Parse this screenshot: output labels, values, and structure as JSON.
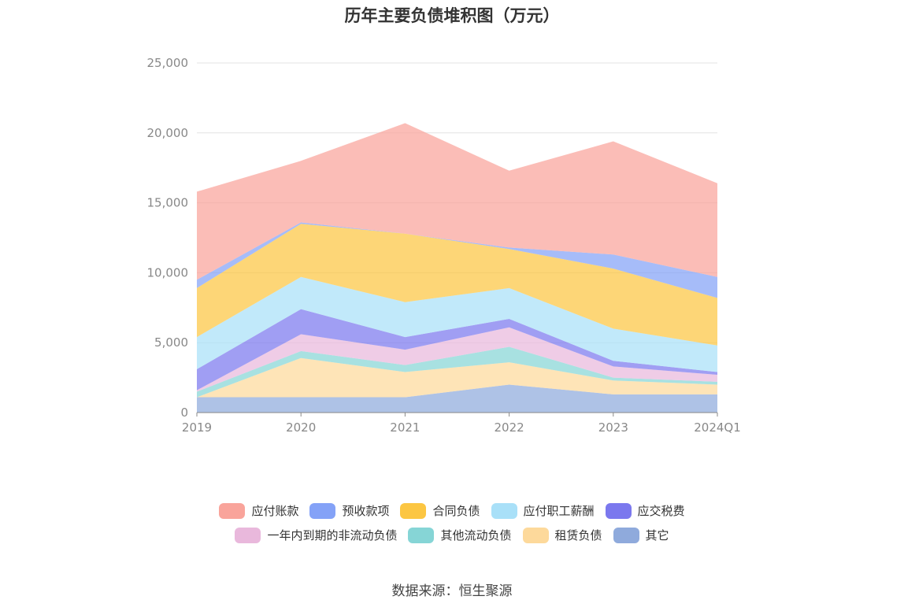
{
  "chart_data": {
    "type": "area",
    "stacked": true,
    "title": "历年主要负债堆积图（万元）",
    "categories": [
      "2019",
      "2020",
      "2021",
      "2022",
      "2023",
      "2024Q1"
    ],
    "ylim": [
      0,
      25000
    ],
    "yticks": [
      0,
      5000,
      10000,
      15000,
      20000,
      25000
    ],
    "ytick_labels": [
      "0",
      "5,000",
      "10,000",
      "15,000",
      "20,000",
      "25,000"
    ],
    "grid": true,
    "legend_position": "bottom",
    "series": [
      {
        "name": "其它",
        "color": "#8faadc",
        "values": [
          1100,
          1100,
          1100,
          2000,
          1300,
          1300
        ]
      },
      {
        "name": "租赁负债",
        "color": "#fdd99b",
        "values": [
          0,
          2800,
          1800,
          1600,
          1000,
          700
        ]
      },
      {
        "name": "其他流动负债",
        "color": "#86d5d6",
        "values": [
          400,
          500,
          500,
          1100,
          200,
          200
        ]
      },
      {
        "name": "一年内到期的非流动负债",
        "color": "#e9b8dc",
        "values": [
          100,
          1200,
          1100,
          1400,
          800,
          500
        ]
      },
      {
        "name": "应交税费",
        "color": "#7b78ee",
        "values": [
          1500,
          1800,
          900,
          600,
          400,
          200
        ]
      },
      {
        "name": "应付职工薪酬",
        "color": "#a9e0f8",
        "values": [
          2300,
          2300,
          2500,
          2200,
          2300,
          1900
        ]
      },
      {
        "name": "合同负债",
        "color": "#fcc642",
        "values": [
          3500,
          3800,
          4900,
          2800,
          4300,
          3400
        ]
      },
      {
        "name": "预收款项",
        "color": "#84a2f7",
        "values": [
          600,
          100,
          0,
          100,
          1000,
          1500
        ]
      },
      {
        "name": "应付账款",
        "color": "#f9a49b",
        "values": [
          6300,
          4400,
          7900,
          5500,
          8100,
          6700
        ]
      }
    ]
  },
  "legend": {
    "row1": [
      "应付账款",
      "预收款项",
      "合同负债",
      "应付职工薪酬",
      "应交税费"
    ],
    "row2": [
      "一年内到期的非流动负债",
      "其他流动负债",
      "租赁负债",
      "其它"
    ]
  },
  "source": "数据来源：恒生聚源"
}
